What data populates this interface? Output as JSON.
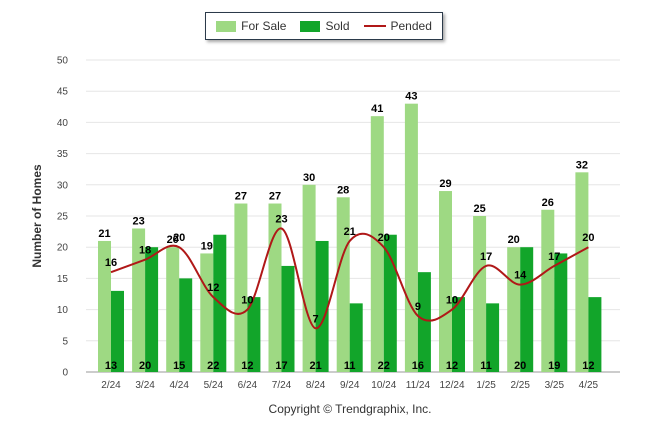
{
  "chart_data": {
    "type": "bar",
    "categories": [
      "2/24",
      "3/24",
      "4/24",
      "5/24",
      "6/24",
      "7/24",
      "8/24",
      "9/24",
      "10/24",
      "11/24",
      "12/24",
      "1/25",
      "2/25",
      "3/25",
      "4/25"
    ],
    "series": [
      {
        "name": "For Sale",
        "type": "bar",
        "color": "#9ed983",
        "values": [
          21,
          23,
          20,
          19,
          27,
          27,
          30,
          28,
          41,
          43,
          29,
          25,
          20,
          26,
          32
        ]
      },
      {
        "name": "Sold",
        "type": "bar",
        "color": "#12a52a",
        "values": [
          13,
          20,
          15,
          22,
          12,
          17,
          21,
          11,
          22,
          16,
          12,
          11,
          20,
          19,
          12
        ]
      },
      {
        "name": "Pended",
        "type": "line",
        "color": "#b01818",
        "values": [
          16,
          18,
          20,
          12,
          10,
          23,
          7,
          21,
          20,
          9,
          10,
          17,
          14,
          17,
          20
        ]
      }
    ],
    "ylabel": "Number of Homes",
    "xlabel": "",
    "ylim": [
      0,
      50
    ],
    "yticks": [
      0,
      5,
      10,
      15,
      20,
      25,
      30,
      35,
      40,
      45,
      50
    ],
    "grid": true,
    "legend_position": "top-center"
  },
  "footer": {
    "copyright": "Copyright © Trendgraphix, Inc."
  }
}
